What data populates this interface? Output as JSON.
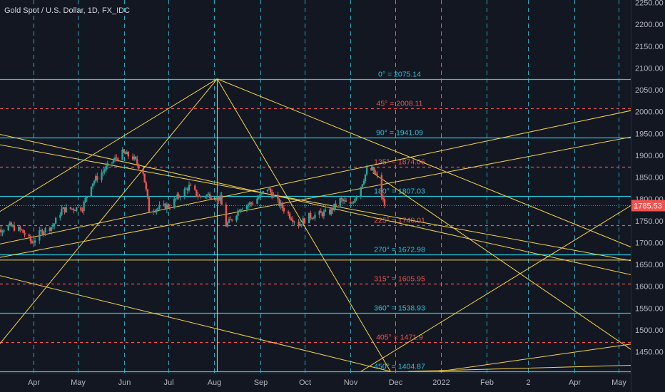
{
  "title": "Gold Spot / U.S. Dollar, 1D, FX_IDC",
  "colors": {
    "background": "#131722",
    "grid": "#2a2e39",
    "level_solid": "#26c6da",
    "level_dashed": "#ef5350",
    "fan": "#f5d547",
    "candle_up": "#26a69a",
    "candle_down": "#ef5350",
    "axis_text": "#b2b5be",
    "price_tag": "#ef5350"
  },
  "chart_data": {
    "type": "candlestick",
    "title": "Gold Spot / U.S. Dollar, 1D, FX_IDC",
    "ylim": [
      1400,
      2250
    ],
    "y_ticks": [
      1450,
      1500,
      1550,
      1600,
      1650,
      1700,
      1750,
      1800,
      1850,
      1900,
      1950,
      2000,
      2050,
      2100,
      2150,
      2200,
      2250
    ],
    "y_tick_labels": [
      "1450.00",
      "1500.00",
      "1550.00",
      "1600.00",
      "1650.00",
      "1700.00",
      "1750.00",
      "1800.00",
      "1850.00",
      "1900.00",
      "1950.00",
      "2000.00",
      "2050.00",
      "2100.00",
      "2150.00",
      "2200.00",
      "2250.00"
    ],
    "x_ticks": [
      {
        "label": "Apr",
        "date": "2021-04-01"
      },
      {
        "label": "May",
        "date": "2021-05-01"
      },
      {
        "label": "Jun",
        "date": "2021-06-01"
      },
      {
        "label": "Jul",
        "date": "2021-07-01"
      },
      {
        "label": "Aug",
        "date": "2021-08-01"
      },
      {
        "label": "Sep",
        "date": "2021-09-01"
      },
      {
        "label": "Oct",
        "date": "2021-10-01"
      },
      {
        "label": "Nov",
        "date": "2021-11-01"
      },
      {
        "label": "Dec",
        "date": "2021-12-01"
      },
      {
        "label": "2022",
        "date": "2022-01-01"
      },
      {
        "label": "Feb",
        "date": "2022-02-01"
      },
      {
        "label": "2",
        "date": "2022-03-01"
      },
      {
        "label": "Apr",
        "date": "2022-04-01"
      },
      {
        "label": "May",
        "date": "2022-05-01"
      }
    ],
    "last_price": 1785.53,
    "last_price_label": "1785.53",
    "levels": [
      {
        "label": "0° = 2075.14",
        "value": 2075.14,
        "style": "solid"
      },
      {
        "label": "45° = 2008.11",
        "value": 2008.11,
        "style": "dashed"
      },
      {
        "label": "90° = 1941.09",
        "value": 1941.09,
        "style": "solid"
      },
      {
        "label": "135° = 1874.06",
        "value": 1874.06,
        "style": "dashed"
      },
      {
        "label": "180° = 1807.03",
        "value": 1807.03,
        "style": "solid"
      },
      {
        "label": "225° = 1740.01",
        "value": 1740.01,
        "style": "dashed"
      },
      {
        "label": "270° = 1672.98",
        "value": 1672.98,
        "style": "solid"
      },
      {
        "label": "315° = 1605.95",
        "value": 1605.95,
        "style": "dashed"
      },
      {
        "label": "360° = 1538.93",
        "value": 1538.93,
        "style": "solid"
      },
      {
        "label": "405° = 1471.9",
        "value": 1471.9,
        "style": "dashed"
      },
      {
        "label": "450° = 1404.87",
        "value": 1404.87,
        "style": "solid"
      }
    ],
    "fan_lines": [
      {
        "x1": "2021-02-28",
        "y1": 1955,
        "x2": "2022-05-31",
        "y2": 1610
      },
      {
        "x1": "2021-02-28",
        "y1": 1690,
        "x2": "2022-05-31",
        "y2": 2018
      },
      {
        "x1": "2021-02-28",
        "y1": 1930,
        "x2": "2022-05-31",
        "y2": 1645
      },
      {
        "x1": "2021-02-28",
        "y1": 1430,
        "x2": "2021-08-03",
        "y2": 2075.14
      },
      {
        "x1": "2021-08-03",
        "y1": 2075.14,
        "x2": "2022-05-31",
        "y2": 1660
      },
      {
        "x1": "2021-02-28",
        "y1": 1752,
        "x2": "2021-08-03",
        "y2": 2075.14
      },
      {
        "x1": "2021-08-03",
        "y1": 2075.14,
        "x2": "2021-11-28",
        "y2": 1404.87
      },
      {
        "x1": "2021-02-28",
        "y1": 1632,
        "x2": "2021-11-28",
        "y2": 1404.87
      },
      {
        "x1": "2021-02-28",
        "y1": 1660,
        "x2": "2022-05-31",
        "y2": 1956
      },
      {
        "x1": "2021-02-28",
        "y1": 1660,
        "x2": "2022-05-31",
        "y2": 1660
      },
      {
        "x1": "2021-11-16",
        "y1": 1860,
        "x2": "2022-05-31",
        "y2": 1404.87
      },
      {
        "x1": "2021-11-08",
        "y1": 1404.87,
        "x2": "2022-05-31",
        "y2": 1830
      },
      {
        "x1": "2021-12-31",
        "y1": 1404.87,
        "x2": "2022-05-31",
        "y2": 1478
      },
      {
        "x1": "2021-12-10",
        "y1": 1404.87,
        "x2": "2022-05-31",
        "y2": 1421
      },
      {
        "x1": "2021-08-03",
        "y1": 1404.87,
        "x2": "2021-08-03",
        "y2": 2075.14
      }
    ],
    "close_path": [
      [
        "2021-03-01",
        1725
      ],
      [
        "2021-03-08",
        1728
      ],
      [
        "2021-03-16",
        1738
      ],
      [
        "2021-03-24",
        1727
      ],
      [
        "2021-03-31",
        1700
      ],
      [
        "2021-04-06",
        1725
      ],
      [
        "2021-04-14",
        1738
      ],
      [
        "2021-04-20",
        1775
      ],
      [
        "2021-04-27",
        1778
      ],
      [
        "2021-05-04",
        1780
      ],
      [
        "2021-05-10",
        1835
      ],
      [
        "2021-05-17",
        1860
      ],
      [
        "2021-05-24",
        1885
      ],
      [
        "2021-05-31",
        1905
      ],
      [
        "2021-06-07",
        1895
      ],
      [
        "2021-06-14",
        1862
      ],
      [
        "2021-06-18",
        1775
      ],
      [
        "2021-06-25",
        1780
      ],
      [
        "2021-07-02",
        1785
      ],
      [
        "2021-07-09",
        1810
      ],
      [
        "2021-07-15",
        1828
      ],
      [
        "2021-07-22",
        1805
      ],
      [
        "2021-07-29",
        1810
      ],
      [
        "2021-08-05",
        1800
      ],
      [
        "2021-08-09",
        1740
      ],
      [
        "2021-08-12",
        1750
      ],
      [
        "2021-08-19",
        1782
      ],
      [
        "2021-08-26",
        1790
      ],
      [
        "2021-09-02",
        1810
      ],
      [
        "2021-09-06",
        1825
      ],
      [
        "2021-09-13",
        1792
      ],
      [
        "2021-09-20",
        1765
      ],
      [
        "2021-09-27",
        1742
      ],
      [
        "2021-10-04",
        1760
      ],
      [
        "2021-10-11",
        1765
      ],
      [
        "2021-10-18",
        1770
      ],
      [
        "2021-10-25",
        1798
      ],
      [
        "2021-11-01",
        1785
      ],
      [
        "2021-11-08",
        1830
      ],
      [
        "2021-11-12",
        1865
      ],
      [
        "2021-11-16",
        1866
      ],
      [
        "2021-11-19",
        1850
      ],
      [
        "2021-11-22",
        1805
      ],
      [
        "2021-11-24",
        1785.53
      ]
    ]
  }
}
